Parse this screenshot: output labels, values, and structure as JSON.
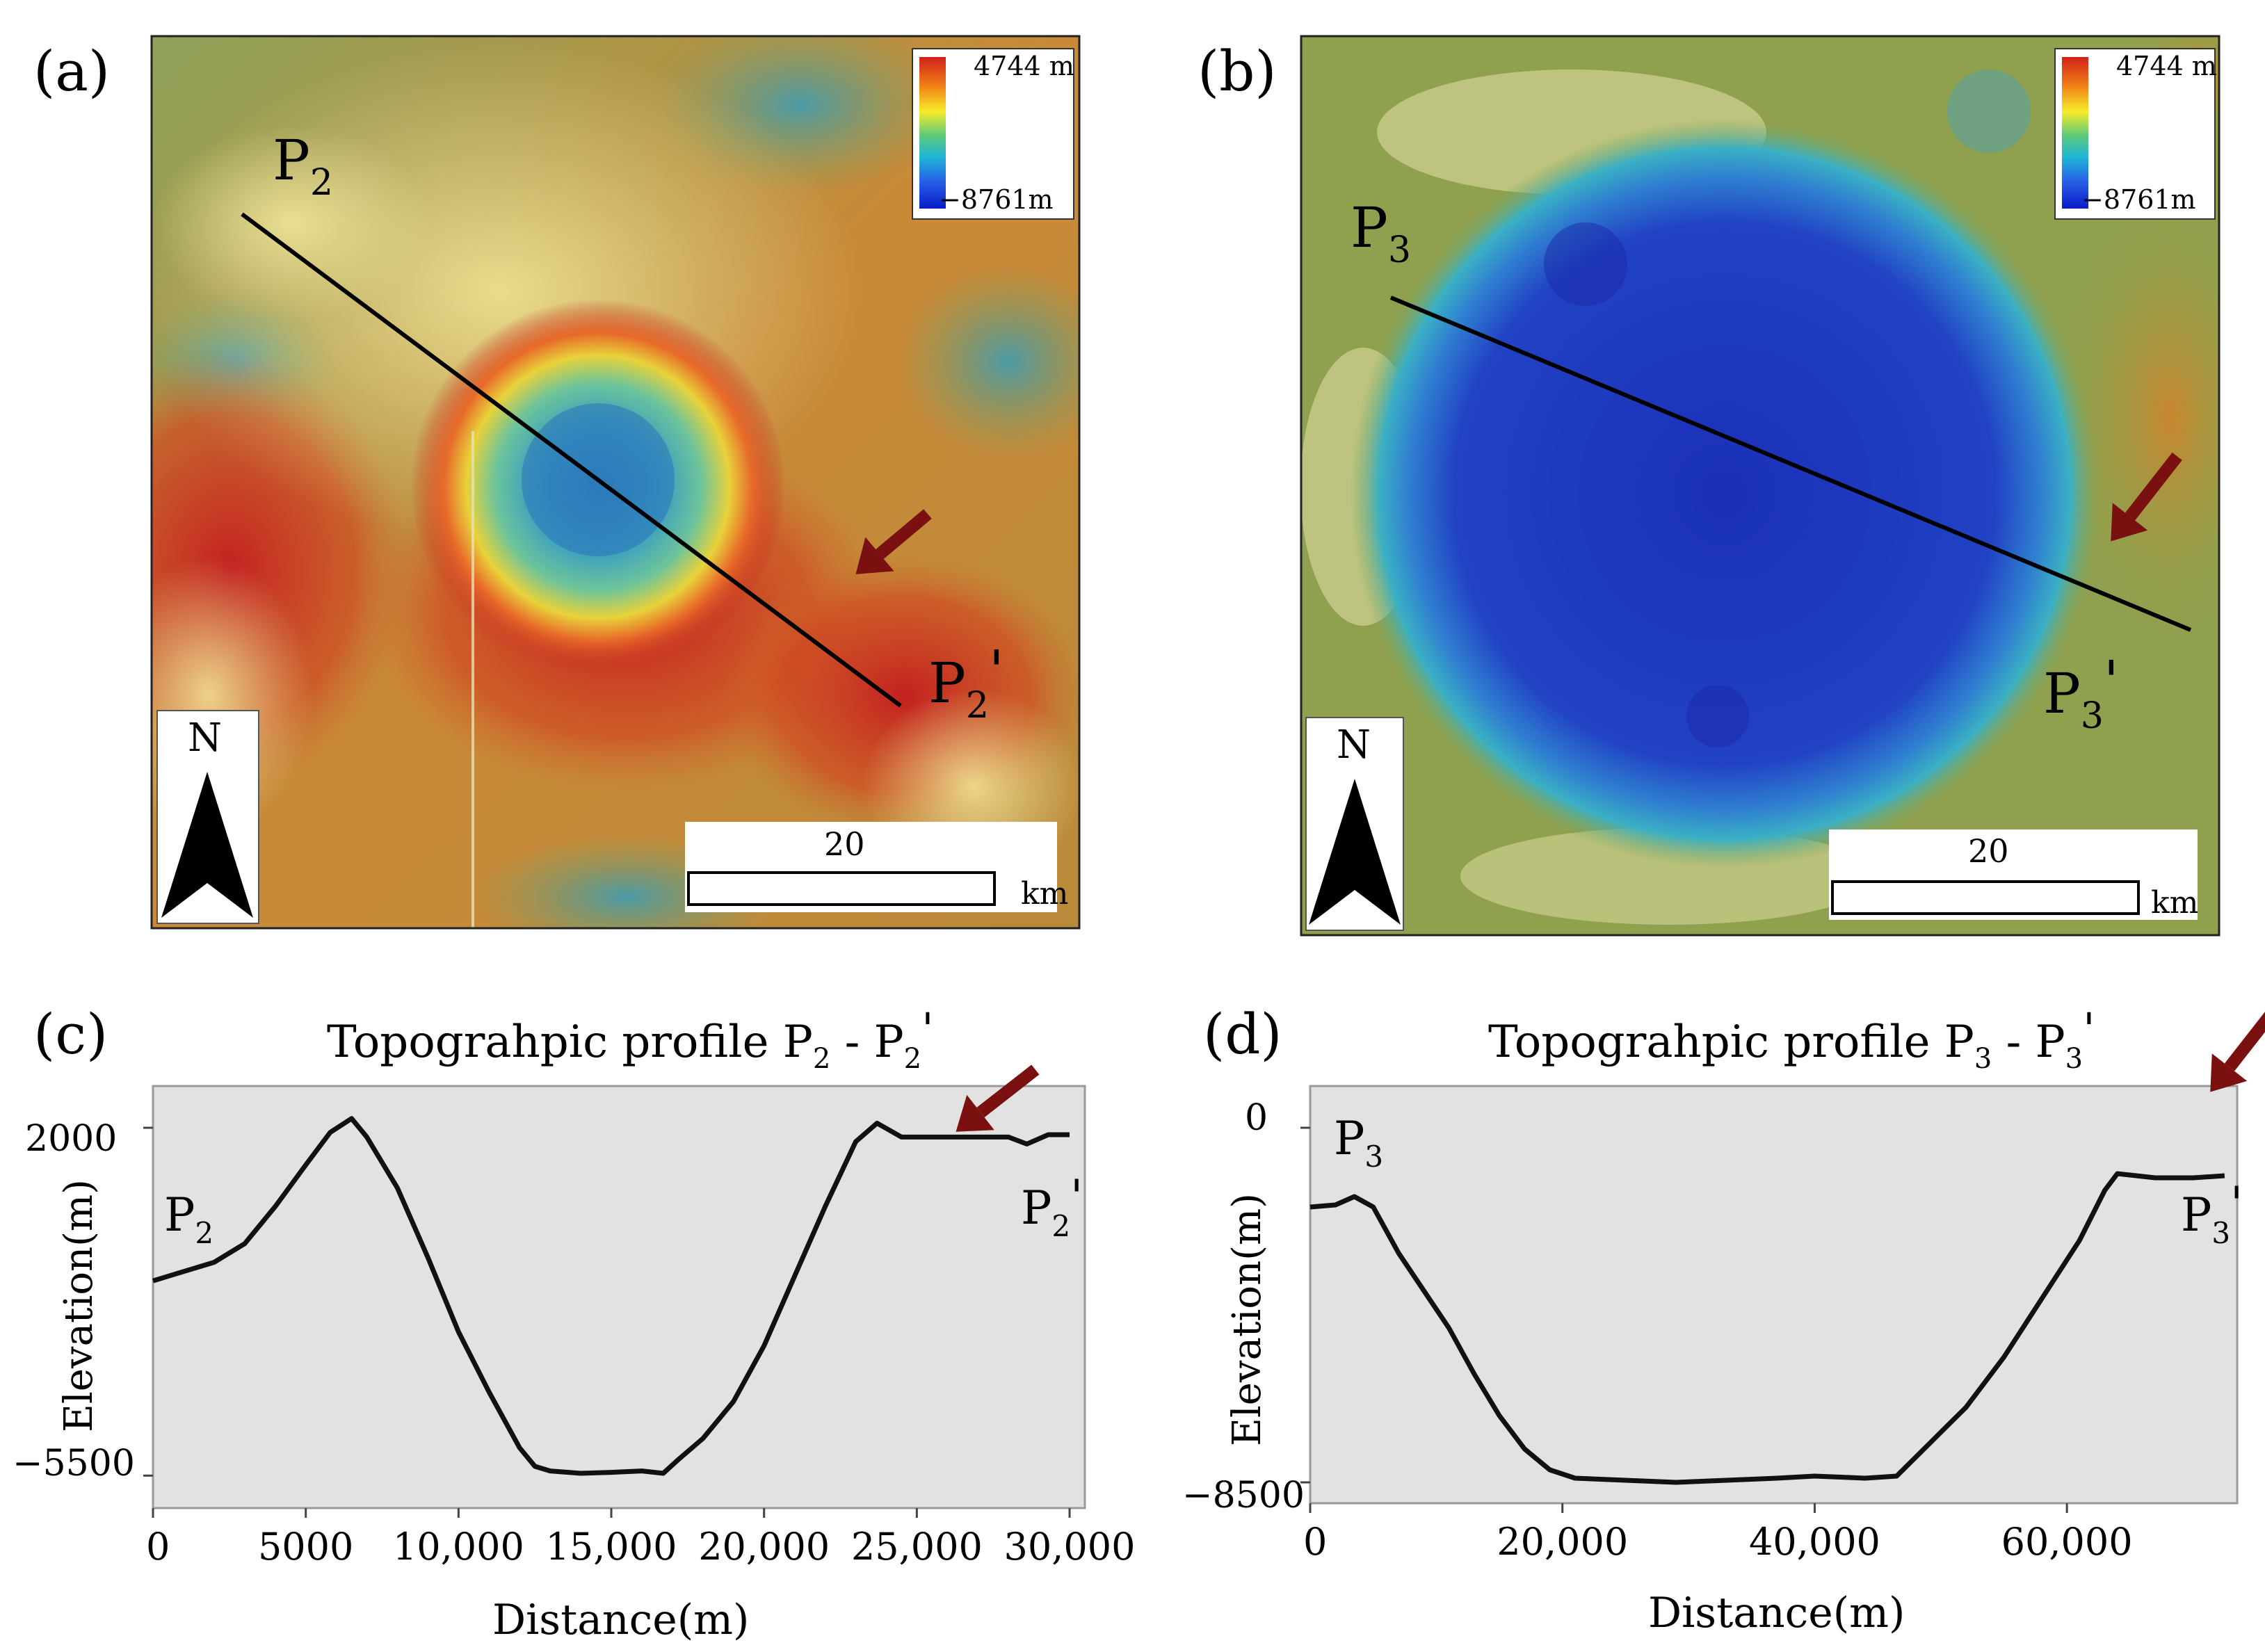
{
  "panels": {
    "a": {
      "label": "(a)",
      "point_start": "P",
      "point_start_sub": "2",
      "point_end": "P",
      "point_end_sub": "2",
      "point_end_prime": "'",
      "legend": {
        "max_label": "4744 m",
        "min_label": "−8761m",
        "colors": [
          "#d0201a",
          "#f07a16",
          "#f6ec2a",
          "#5cc97a",
          "#1fb6d6",
          "#2660e6",
          "#0a1cc8"
        ]
      },
      "north_label": "N",
      "scale_value": "20",
      "scale_unit": "km"
    },
    "b": {
      "label": "(b)",
      "point_start": "P",
      "point_start_sub": "3",
      "point_end": "P",
      "point_end_sub": "3",
      "point_end_prime": "'",
      "legend": {
        "max_label": "4744 m",
        "min_label": "−8761m",
        "colors": [
          "#d0201a",
          "#f07a16",
          "#f6ec2a",
          "#5cc97a",
          "#1fb6d6",
          "#2660e6",
          "#0a1cc8"
        ]
      },
      "north_label": "N",
      "scale_value": "20",
      "scale_unit": "km"
    },
    "c": {
      "label": "(c)",
      "title": "Topograhpic profile P",
      "title_sub1": "2",
      "title_mid": " - P",
      "title_sub2": "2",
      "title_end": "'",
      "xlabel": "Distance(m)",
      "ylabel": "Elevation(m)",
      "ytick_labels": [
        "2000",
        "−5500"
      ],
      "xtick_labels": [
        "0",
        "5000",
        "10,000",
        "15,000",
        "20,000",
        "25,000",
        "30,000"
      ],
      "start_label": "P",
      "start_sub": "2",
      "end_label": "P",
      "end_sub": "2",
      "end_prime": "'"
    },
    "d": {
      "label": "(d)",
      "title": "Topograhpic profile P",
      "title_sub1": "3",
      "title_mid": " - P",
      "title_sub2": "3",
      "title_end": "'",
      "xlabel": "Distance(m)",
      "ylabel": "Elevation(m)",
      "ytick_labels": [
        "0",
        "−8500"
      ],
      "xtick_labels": [
        "0",
        "20,000",
        "40,000",
        "60,000"
      ],
      "start_label": "P",
      "start_sub": "3",
      "end_label": "P",
      "end_sub": "3",
      "end_prime": "'"
    }
  },
  "colors": {
    "arrow": "#7a1010",
    "profile_bg": "#e2e2e2",
    "profile_line": "#111111"
  },
  "chart_data": [
    {
      "type": "line",
      "title": "Topograhpic profile P2 - P2'",
      "xlabel": "Distance(m)",
      "ylabel": "Elevation(m)",
      "xlim": [
        0,
        30500
      ],
      "ylim": [
        -6200,
        2900
      ],
      "xticks": [
        0,
        5000,
        10000,
        15000,
        20000,
        25000,
        30000
      ],
      "yticks": [
        2000,
        -5500
      ],
      "grid": false,
      "x": [
        0,
        1000,
        2000,
        3000,
        4000,
        5000,
        5800,
        6500,
        7000,
        8000,
        9000,
        10000,
        11000,
        12000,
        12500,
        13000,
        14000,
        15000,
        16000,
        16700,
        17200,
        18000,
        19000,
        20000,
        21000,
        22000,
        23000,
        23700,
        24500,
        25000,
        26000,
        27000,
        28000,
        28600,
        29300,
        30000
      ],
      "y": [
        -1300,
        -1100,
        -900,
        -500,
        300,
        1200,
        1900,
        2200,
        1800,
        700,
        -800,
        -2400,
        -3700,
        -4900,
        -5300,
        -5400,
        -5450,
        -5430,
        -5400,
        -5450,
        -5150,
        -4700,
        -3900,
        -2700,
        -1200,
        300,
        1700,
        2100,
        1800,
        1800,
        1800,
        1800,
        1800,
        1650,
        1850,
        1850
      ]
    },
    {
      "type": "line",
      "title": "Topograhpic profile P3 - P3'",
      "xlabel": "Distance(m)",
      "ylabel": "Elevation(m)",
      "xlim": [
        0,
        73500
      ],
      "ylim": [
        -9000,
        1000
      ],
      "xticks": [
        0,
        20000,
        40000,
        60000
      ],
      "yticks": [
        0,
        -8500
      ],
      "grid": false,
      "x": [
        0,
        2000,
        3500,
        5000,
        7000,
        9000,
        11000,
        13000,
        15000,
        17000,
        19000,
        21000,
        25000,
        29000,
        33000,
        37000,
        40000,
        44000,
        46500,
        49000,
        52000,
        55000,
        58000,
        61000,
        63000,
        64000,
        65500,
        67000,
        70000,
        72500
      ],
      "y": [
        -1900,
        -1850,
        -1650,
        -1900,
        -3000,
        -3900,
        -4800,
        -5900,
        -6900,
        -7700,
        -8200,
        -8400,
        -8450,
        -8500,
        -8450,
        -8400,
        -8350,
        -8400,
        -8350,
        -7600,
        -6700,
        -5500,
        -4100,
        -2700,
        -1500,
        -1100,
        -1150,
        -1200,
        -1200,
        -1150
      ]
    }
  ]
}
